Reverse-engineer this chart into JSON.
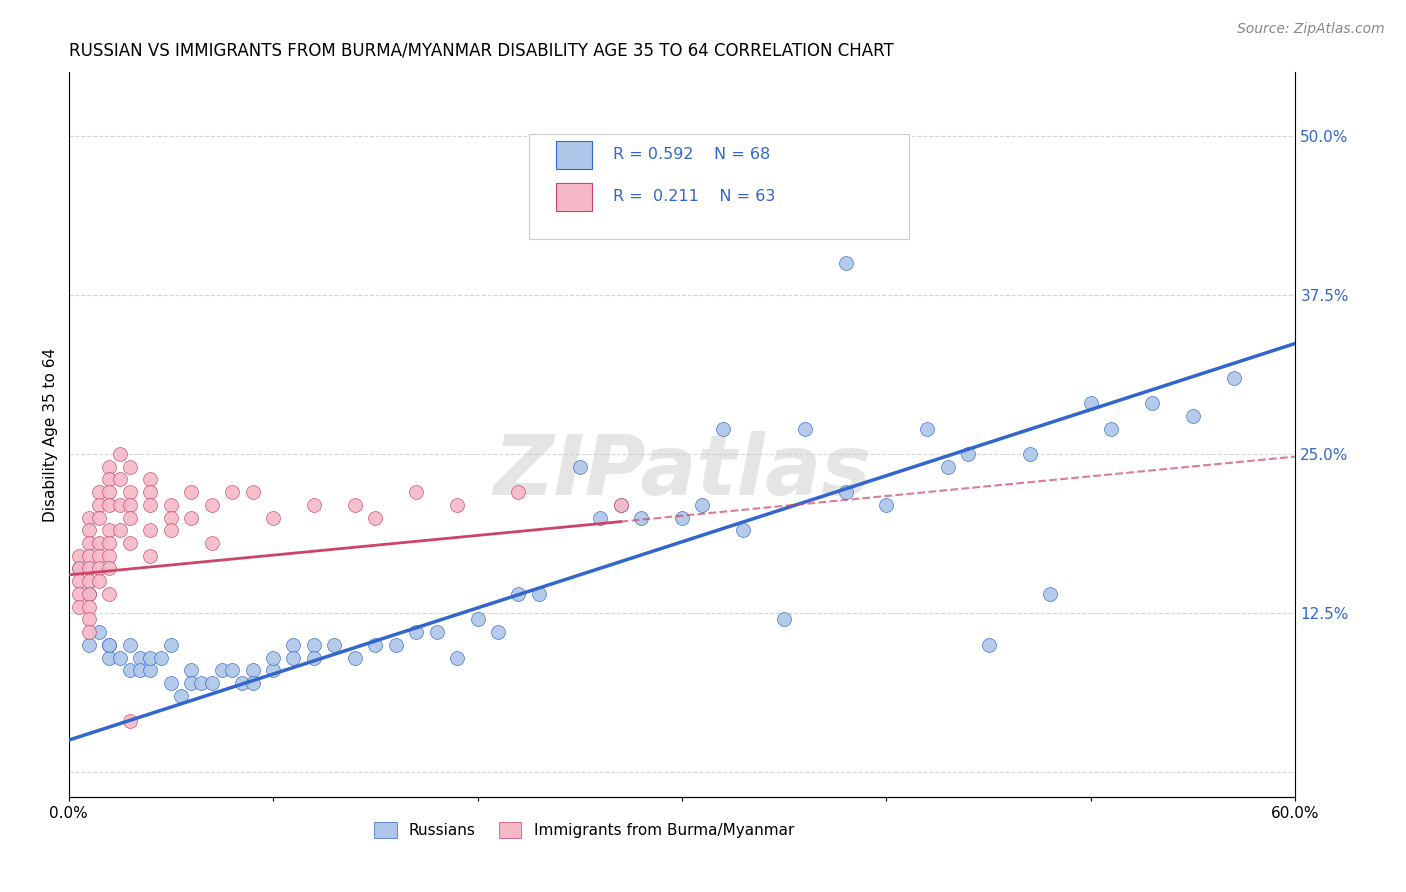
{
  "title": "RUSSIAN VS IMMIGRANTS FROM BURMA/MYANMAR DISABILITY AGE 35 TO 64 CORRELATION CHART",
  "source": "Source: ZipAtlas.com",
  "ylabel": "Disability Age 35 to 64",
  "xlim": [
    0.0,
    0.6
  ],
  "ylim": [
    -0.02,
    0.55
  ],
  "yticks": [
    0.0,
    0.125,
    0.25,
    0.375,
    0.5
  ],
  "ytick_labels": [
    "",
    "12.5%",
    "25.0%",
    "37.5%",
    "50.0%"
  ],
  "xticks": [
    0.0,
    0.1,
    0.2,
    0.3,
    0.4,
    0.5,
    0.6
  ],
  "xtick_labels": [
    "0.0%",
    "",
    "",
    "",
    "",
    "",
    "60.0%"
  ],
  "color_russian": "#aec6e8",
  "color_burma": "#f4b8c8",
  "color_russian_line": "#3366cc",
  "color_burma_line": "#cc4466",
  "color_dashed": "#cc4466",
  "watermark": "ZIPatlas",
  "russian_slope": 0.52,
  "russian_intercept": 0.025,
  "burma_slope": 0.155,
  "burma_intercept": 0.155,
  "burma_line_xstart": 0.0,
  "burma_line_xend": 0.27,
  "burma_dash_xstart": 0.27,
  "burma_dash_xend": 0.6,
  "russian_x": [
    0.005,
    0.01,
    0.01,
    0.015,
    0.02,
    0.02,
    0.02,
    0.025,
    0.03,
    0.03,
    0.035,
    0.035,
    0.04,
    0.04,
    0.045,
    0.05,
    0.05,
    0.055,
    0.06,
    0.06,
    0.065,
    0.07,
    0.075,
    0.08,
    0.085,
    0.09,
    0.09,
    0.1,
    0.1,
    0.11,
    0.11,
    0.12,
    0.12,
    0.13,
    0.14,
    0.15,
    0.16,
    0.17,
    0.18,
    0.19,
    0.2,
    0.21,
    0.22,
    0.23,
    0.25,
    0.26,
    0.27,
    0.28,
    0.3,
    0.31,
    0.33,
    0.35,
    0.36,
    0.38,
    0.4,
    0.42,
    0.43,
    0.44,
    0.45,
    0.47,
    0.48,
    0.5,
    0.51,
    0.53,
    0.55,
    0.57,
    0.32,
    0.38
  ],
  "russian_y": [
    0.16,
    0.14,
    0.1,
    0.11,
    0.1,
    0.09,
    0.1,
    0.09,
    0.08,
    0.1,
    0.09,
    0.08,
    0.08,
    0.09,
    0.09,
    0.07,
    0.1,
    0.06,
    0.08,
    0.07,
    0.07,
    0.07,
    0.08,
    0.08,
    0.07,
    0.08,
    0.07,
    0.08,
    0.09,
    0.1,
    0.09,
    0.1,
    0.09,
    0.1,
    0.09,
    0.1,
    0.1,
    0.11,
    0.11,
    0.09,
    0.12,
    0.11,
    0.14,
    0.14,
    0.24,
    0.2,
    0.21,
    0.2,
    0.2,
    0.21,
    0.19,
    0.12,
    0.27,
    0.22,
    0.21,
    0.27,
    0.24,
    0.25,
    0.1,
    0.25,
    0.14,
    0.29,
    0.27,
    0.29,
    0.28,
    0.31,
    0.27,
    0.4
  ],
  "burma_x": [
    0.005,
    0.005,
    0.005,
    0.005,
    0.005,
    0.01,
    0.01,
    0.01,
    0.01,
    0.01,
    0.01,
    0.01,
    0.01,
    0.01,
    0.01,
    0.015,
    0.015,
    0.015,
    0.015,
    0.015,
    0.015,
    0.015,
    0.02,
    0.02,
    0.02,
    0.02,
    0.02,
    0.02,
    0.02,
    0.02,
    0.02,
    0.025,
    0.025,
    0.025,
    0.025,
    0.03,
    0.03,
    0.03,
    0.03,
    0.03,
    0.03,
    0.04,
    0.04,
    0.04,
    0.04,
    0.04,
    0.05,
    0.05,
    0.05,
    0.06,
    0.06,
    0.07,
    0.07,
    0.08,
    0.09,
    0.1,
    0.12,
    0.14,
    0.15,
    0.17,
    0.19,
    0.22,
    0.27
  ],
  "burma_y": [
    0.17,
    0.16,
    0.15,
    0.14,
    0.13,
    0.2,
    0.19,
    0.18,
    0.17,
    0.16,
    0.15,
    0.14,
    0.13,
    0.12,
    0.11,
    0.22,
    0.21,
    0.2,
    0.18,
    0.17,
    0.16,
    0.15,
    0.24,
    0.23,
    0.22,
    0.21,
    0.19,
    0.18,
    0.17,
    0.16,
    0.14,
    0.25,
    0.23,
    0.21,
    0.19,
    0.24,
    0.22,
    0.21,
    0.2,
    0.18,
    0.04,
    0.23,
    0.22,
    0.21,
    0.19,
    0.17,
    0.21,
    0.2,
    0.19,
    0.22,
    0.2,
    0.21,
    0.18,
    0.22,
    0.22,
    0.2,
    0.21,
    0.21,
    0.2,
    0.22,
    0.21,
    0.22,
    0.21
  ]
}
